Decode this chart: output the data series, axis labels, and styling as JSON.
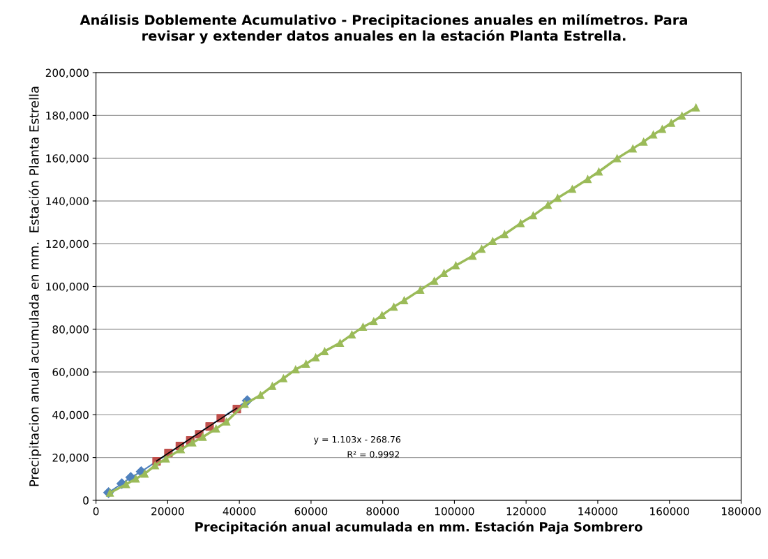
{
  "chart_data": {
    "type": "line",
    "title": "Análisis Doblemente Acumulativo - Precipitaciones anuales en milímetros. Para\nrevisar y extender datos anuales en la estación Planta Estrella.",
    "xlabel": "Precipitación anual acumulada en mm. Estación Paja Sombrero",
    "ylabel": "Precipitacion anual acumulada en mm.  Estación Planta Estrella",
    "xlim": [
      0,
      180000
    ],
    "xticks": [
      0,
      20000,
      40000,
      60000,
      80000,
      100000,
      120000,
      140000,
      160000,
      180000
    ],
    "ylim": [
      0,
      200000
    ],
    "yticks": [
      {
        "value": 0,
        "label": "0"
      },
      {
        "value": 20000,
        "label": "20,000"
      },
      {
        "value": 40000,
        "label": "40,000"
      },
      {
        "value": 60000,
        "label": "60,000"
      },
      {
        "value": 80000,
        "label": "80,000"
      },
      {
        "value": 100000,
        "label": "100,000"
      },
      {
        "value": 120000,
        "label": "120,000"
      },
      {
        "value": 140000,
        "label": "140,000"
      },
      {
        "value": 160000,
        "label": "160,000"
      },
      {
        "value": 180000,
        "label": "180,000"
      },
      {
        "value": 200000,
        "label": "200,000"
      }
    ],
    "grid": "y",
    "annotations": [
      "y = 1.103x - 268.76",
      "R² = 0.9992"
    ],
    "series": [
      {
        "color": "#4f81bd",
        "marker": "diamond",
        "line_style": "solid",
        "x": [
          3500,
          7200,
          9700,
          12600,
          42200
        ],
        "values": [
          3600,
          7800,
          10700,
          13400,
          46600
        ]
      },
      {
        "type": "scatter",
        "color": "#c0504d",
        "marker": "square",
        "x": [
          16900,
          20200,
          23400,
          26300,
          28800,
          31700,
          34800,
          39300
        ],
        "values": [
          18200,
          22100,
          25400,
          28000,
          30900,
          34500,
          38400,
          42700
        ]
      },
      {
        "color": "#9bbb59",
        "marker": "triangle",
        "line_style": "solid",
        "x": [
          3900,
          8400,
          11100,
          13600,
          16500,
          19500,
          23700,
          26900,
          29800,
          33500,
          36400,
          41500,
          45900,
          49200,
          52300,
          55700,
          58600,
          61300,
          63800,
          68100,
          71400,
          74500,
          77500,
          79800,
          83100,
          86000,
          90500,
          94400,
          97100,
          100400,
          105100,
          107600,
          110700,
          114000,
          118500,
          122000,
          126100,
          128800,
          132900,
          137200,
          140300,
          145400,
          149800,
          152800,
          155500,
          158000,
          160500,
          163500,
          167400
        ],
        "values": [
          3500,
          7500,
          10100,
          12400,
          16300,
          19500,
          23800,
          27000,
          29600,
          33500,
          36800,
          45000,
          49200,
          53400,
          57000,
          61200,
          63800,
          66800,
          69700,
          73600,
          77500,
          81100,
          83700,
          86600,
          90500,
          93500,
          98400,
          102600,
          106200,
          109800,
          114300,
          117600,
          121200,
          124400,
          129600,
          133200,
          138100,
          141400,
          145600,
          150200,
          153700,
          159900,
          164500,
          167700,
          171000,
          173600,
          176500,
          179800,
          183700
        ]
      },
      {
        "type": "line",
        "color": "#000000",
        "marker": "none",
        "line_style": "solid",
        "x": [
          16900,
          39300
        ],
        "values": [
          18400,
          43100
        ]
      }
    ]
  }
}
